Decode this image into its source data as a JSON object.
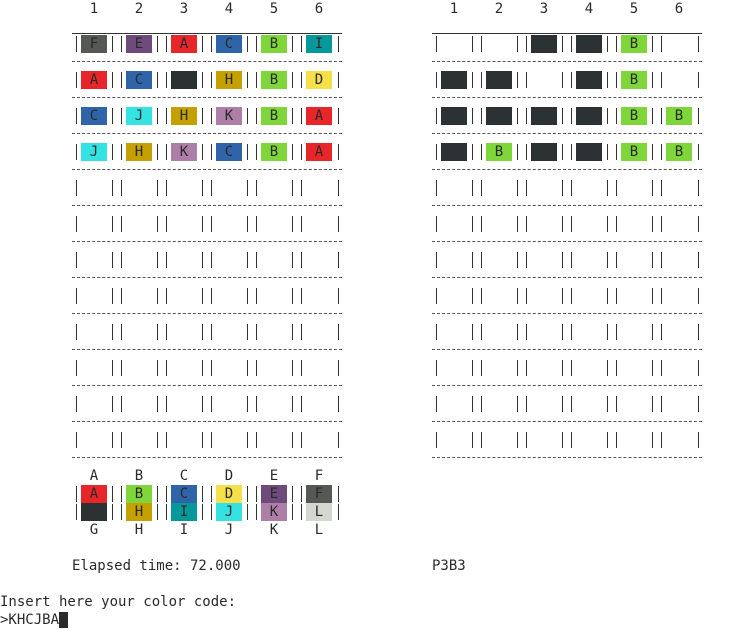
{
  "colors": {
    "A": "#e8262a",
    "B": "#7fd63a",
    "C": "#2f64a8",
    "D": "#f5e04a",
    "E": "#6e4b7a",
    "F": "#565856",
    "G": "#2c3134",
    "H": "#c4a000",
    "I": "#06989a",
    "J": "#34e2e2",
    "K": "#ad7fa8",
    "L": "#d3d7cf",
    "black": "#2c3134"
  },
  "columns": [
    "1",
    "2",
    "3",
    "4",
    "5",
    "6"
  ],
  "guesses": [
    [
      "F",
      "E",
      "A",
      "C",
      "B",
      "I"
    ],
    [
      "A",
      "C",
      "black",
      "H",
      "B",
      "D"
    ],
    [
      "C",
      "J",
      "H",
      "K",
      "B",
      "A"
    ],
    [
      "J",
      "H",
      "K",
      "C",
      "B",
      "A"
    ]
  ],
  "feedback": [
    [
      "",
      "",
      "black",
      "black",
      "B",
      ""
    ],
    [
      "black",
      "black",
      "",
      "black",
      "B",
      ""
    ],
    [
      "black",
      "black",
      "black",
      "black",
      "B",
      "B"
    ],
    [
      "black",
      "B",
      "black",
      "black",
      "B",
      "B"
    ]
  ],
  "total_rows": 12,
  "palette": {
    "top_labels": [
      "A",
      "B",
      "C",
      "D",
      "E",
      "F"
    ],
    "bottom_labels": [
      "G",
      "H",
      "I",
      "J",
      "K",
      "L"
    ]
  },
  "status": {
    "elapsed": "Elapsed time: 72.000",
    "score": "P3B3"
  },
  "prompt": {
    "label": "Insert here your color code:",
    "input": ">KHCJBA"
  }
}
